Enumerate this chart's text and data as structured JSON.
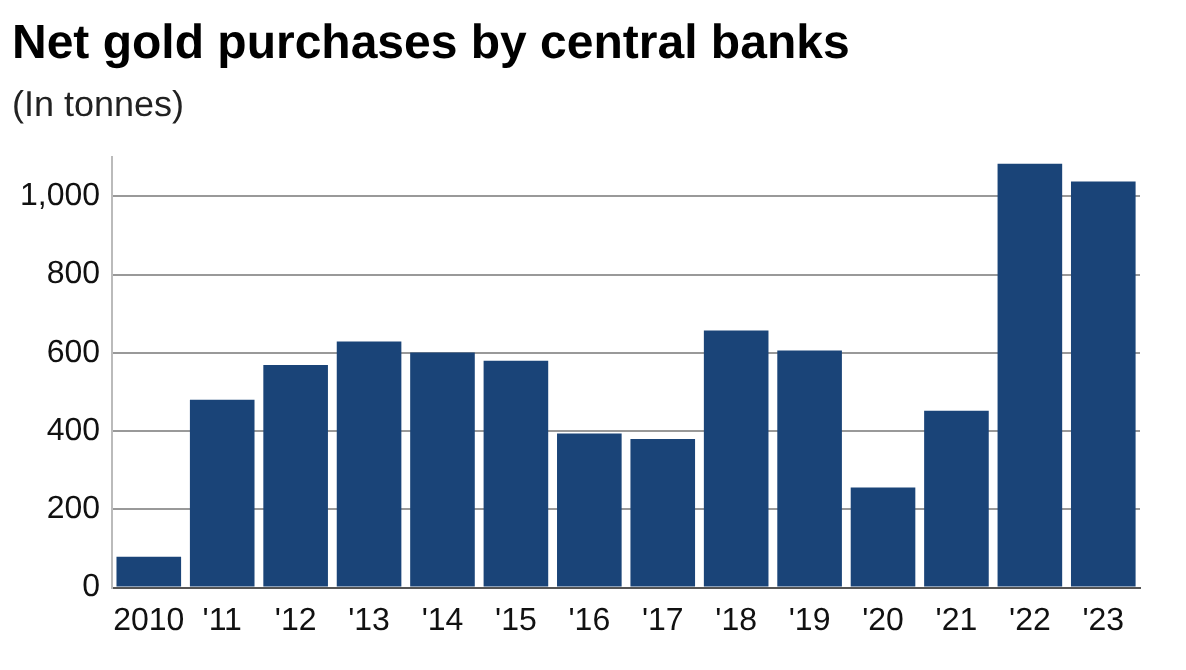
{
  "chart_data": {
    "type": "bar",
    "title": "Net gold purchases by central banks",
    "subtitle": "(In tonnes)",
    "categories": [
      "2010",
      "'11",
      "'12",
      "'13",
      "'14",
      "'15",
      "'16",
      "'17",
      "'18",
      "'19",
      "'20",
      "'21",
      "'22",
      "'23"
    ],
    "values": [
      79,
      480,
      569,
      629,
      601,
      580,
      394,
      380,
      657,
      606,
      256,
      452,
      1083,
      1038
    ],
    "color": "#1a4478",
    "ylim": [
      0,
      1100
    ],
    "yticks": [
      0,
      200,
      400,
      600,
      800,
      {
        "value": 1000,
        "label": "1,000"
      }
    ],
    "grid": "y",
    "legend": false
  }
}
